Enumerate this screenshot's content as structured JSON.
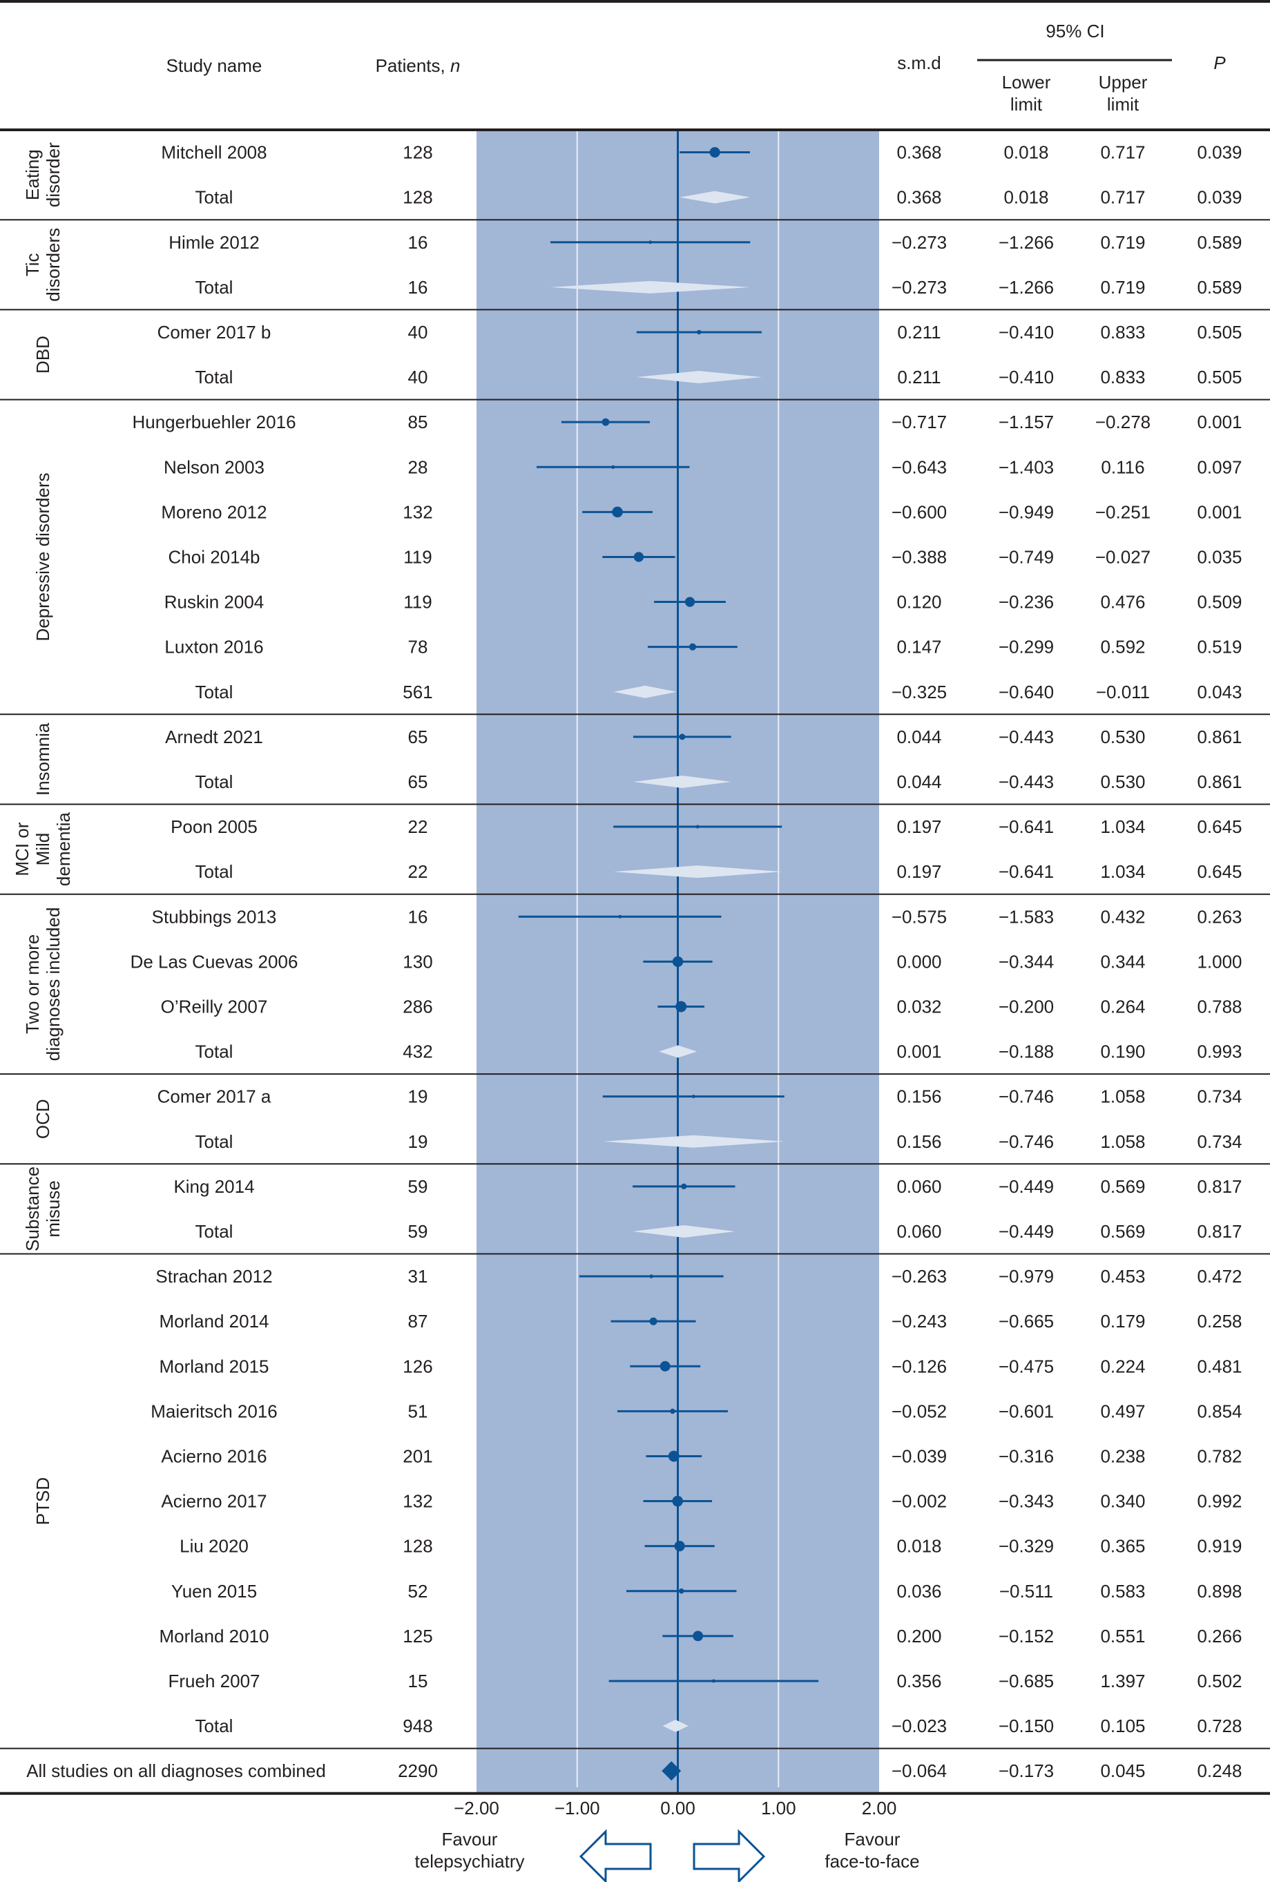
{
  "header": {
    "study_name": "Study name",
    "patients": "Patients, ",
    "patients_n": "n",
    "smd": "s.m.d",
    "ci": "95% CI",
    "lower": [
      "Lower",
      "limit"
    ],
    "upper": [
      "Upper",
      "limit"
    ],
    "p": "P"
  },
  "colors": {
    "plot_bg": "#a2b6d6",
    "marker": "#0b5394",
    "subtotal_diamond": "#dde5f1",
    "gridline": "#e8eef6",
    "rule": "#231f20"
  },
  "chart_data": {
    "type": "forest",
    "title": "",
    "xlabel": "",
    "x_ticks": [
      "−2.00",
      "−1.00",
      "0.00",
      "1.00",
      "2.00"
    ],
    "x_tick_values": [
      -2,
      -1,
      0,
      1,
      2
    ],
    "xlim": [
      -2,
      2
    ],
    "left_label": [
      "Favour",
      "telepsychiatry"
    ],
    "right_label": [
      "Favour",
      "face-to-face"
    ],
    "groups": [
      {
        "label": [
          "Eating",
          "disorder"
        ],
        "rows": [
          {
            "study": "Mitchell 2008",
            "n": "128",
            "smd": 0.368,
            "lower": 0.018,
            "upper": 0.717,
            "p": "0.039",
            "smd_text": "0.368",
            "lower_text": "0.018",
            "upper_text": "0.717"
          },
          {
            "study": "Total",
            "total": true,
            "n": "128",
            "smd": 0.368,
            "lower": 0.018,
            "upper": 0.717,
            "p": "0.039",
            "smd_text": "0.368",
            "lower_text": "0.018",
            "upper_text": "0.717"
          }
        ]
      },
      {
        "label": [
          "Tic",
          "disorders"
        ],
        "rows": [
          {
            "study": "Himle 2012",
            "n": "16",
            "smd": -0.273,
            "lower": -1.266,
            "upper": 0.719,
            "p": "0.589",
            "smd_text": "−0.273",
            "lower_text": "−1.266",
            "upper_text": "0.719"
          },
          {
            "study": "Total",
            "total": true,
            "n": "16",
            "smd": -0.273,
            "lower": -1.266,
            "upper": 0.719,
            "p": "0.589",
            "smd_text": "−0.273",
            "lower_text": "−1.266",
            "upper_text": "0.719"
          }
        ]
      },
      {
        "label": [
          "DBD"
        ],
        "rows": [
          {
            "study": "Comer 2017 b",
            "n": "40",
            "smd": 0.211,
            "lower": -0.41,
            "upper": 0.833,
            "p": "0.505",
            "smd_text": "0.211",
            "lower_text": "−0.410",
            "upper_text": "0.833"
          },
          {
            "study": "Total",
            "total": true,
            "n": "40",
            "smd": 0.211,
            "lower": -0.41,
            "upper": 0.833,
            "p": "0.505",
            "smd_text": "0.211",
            "lower_text": "−0.410",
            "upper_text": "0.833"
          }
        ]
      },
      {
        "label": [
          "Depressive disorders"
        ],
        "rows": [
          {
            "study": "Hungerbuehler 2016",
            "n": "85",
            "smd": -0.717,
            "lower": -1.157,
            "upper": -0.278,
            "p": "0.001",
            "smd_text": "−0.717",
            "lower_text": "−1.157",
            "upper_text": "−0.278"
          },
          {
            "study": "Nelson 2003",
            "n": "28",
            "smd": -0.643,
            "lower": -1.403,
            "upper": 0.116,
            "p": "0.097",
            "smd_text": "−0.643",
            "lower_text": "−1.403",
            "upper_text": "0.116"
          },
          {
            "study": "Moreno 2012",
            "n": "132",
            "smd": -0.6,
            "lower": -0.949,
            "upper": -0.251,
            "p": "0.001",
            "smd_text": "−0.600",
            "lower_text": "−0.949",
            "upper_text": "−0.251"
          },
          {
            "study": "Choi 2014b",
            "n": "119",
            "smd": -0.388,
            "lower": -0.749,
            "upper": -0.027,
            "p": "0.035",
            "smd_text": "−0.388",
            "lower_text": "−0.749",
            "upper_text": "−0.027"
          },
          {
            "study": "Ruskin 2004",
            "n": "119",
            "smd": 0.12,
            "lower": -0.236,
            "upper": 0.476,
            "p": "0.509",
            "smd_text": "0.120",
            "lower_text": "−0.236",
            "upper_text": "0.476"
          },
          {
            "study": "Luxton 2016",
            "n": "78",
            "smd": 0.147,
            "lower": -0.299,
            "upper": 0.592,
            "p": "0.519",
            "smd_text": "0.147",
            "lower_text": "−0.299",
            "upper_text": "0.592"
          },
          {
            "study": "Total",
            "total": true,
            "n": "561",
            "smd": -0.325,
            "lower": -0.64,
            "upper": -0.011,
            "p": "0.043",
            "smd_text": "−0.325",
            "lower_text": "−0.640",
            "upper_text": "−0.011"
          }
        ]
      },
      {
        "label": [
          "Insomnia"
        ],
        "rows": [
          {
            "study": "Arnedt 2021",
            "n": "65",
            "smd": 0.044,
            "lower": -0.443,
            "upper": 0.53,
            "p": "0.861",
            "smd_text": "0.044",
            "lower_text": "−0.443",
            "upper_text": "0.530"
          },
          {
            "study": "Total",
            "total": true,
            "n": "65",
            "smd": 0.044,
            "lower": -0.443,
            "upper": 0.53,
            "p": "0.861",
            "smd_text": "0.044",
            "lower_text": "−0.443",
            "upper_text": "0.530"
          }
        ]
      },
      {
        "label": [
          "MCI or",
          "Mild",
          "dementia"
        ],
        "rows": [
          {
            "study": "Poon 2005",
            "n": "22",
            "smd": 0.197,
            "lower": -0.641,
            "upper": 1.034,
            "p": "0.645",
            "smd_text": "0.197",
            "lower_text": "−0.641",
            "upper_text": "1.034"
          },
          {
            "study": "Total",
            "total": true,
            "n": "22",
            "smd": 0.197,
            "lower": -0.641,
            "upper": 1.034,
            "p": "0.645",
            "smd_text": "0.197",
            "lower_text": "−0.641",
            "upper_text": "1.034"
          }
        ]
      },
      {
        "label": [
          "Two or more",
          "diagnoses included"
        ],
        "rows": [
          {
            "study": "Stubbings 2013",
            "n": "16",
            "smd": -0.575,
            "lower": -1.583,
            "upper": 0.432,
            "p": "0.263",
            "smd_text": "−0.575",
            "lower_text": "−1.583",
            "upper_text": "0.432"
          },
          {
            "study": "De Las Cuevas 2006",
            "n": "130",
            "smd": 0.0,
            "lower": -0.344,
            "upper": 0.344,
            "p": "1.000",
            "smd_text": "0.000",
            "lower_text": "−0.344",
            "upper_text": "0.344"
          },
          {
            "study": "O’Reilly 2007",
            "n": "286",
            "smd": 0.032,
            "lower": -0.2,
            "upper": 0.264,
            "p": "0.788",
            "smd_text": "0.032",
            "lower_text": "−0.200",
            "upper_text": "0.264"
          },
          {
            "study": "Total",
            "total": true,
            "n": "432",
            "smd": 0.001,
            "lower": -0.188,
            "upper": 0.19,
            "p": "0.993",
            "smd_text": "0.001",
            "lower_text": "−0.188",
            "upper_text": "0.190"
          }
        ]
      },
      {
        "label": [
          "OCD"
        ],
        "rows": [
          {
            "study": "Comer 2017 a",
            "n": "19",
            "smd": 0.156,
            "lower": -0.746,
            "upper": 1.058,
            "p": "0.734",
            "smd_text": "0.156",
            "lower_text": "−0.746",
            "upper_text": "1.058"
          },
          {
            "study": "Total",
            "total": true,
            "n": "19",
            "smd": 0.156,
            "lower": -0.746,
            "upper": 1.058,
            "p": "0.734",
            "smd_text": "0.156",
            "lower_text": "−0.746",
            "upper_text": "1.058"
          }
        ]
      },
      {
        "label": [
          "Substance",
          "misuse"
        ],
        "rows": [
          {
            "study": "King 2014",
            "n": "59",
            "smd": 0.06,
            "lower": -0.449,
            "upper": 0.569,
            "p": "0.817",
            "smd_text": "0.060",
            "lower_text": "−0.449",
            "upper_text": "0.569"
          },
          {
            "study": "Total",
            "total": true,
            "n": "59",
            "smd": 0.06,
            "lower": -0.449,
            "upper": 0.569,
            "p": "0.817",
            "smd_text": "0.060",
            "lower_text": "−0.449",
            "upper_text": "0.569"
          }
        ]
      },
      {
        "label": [
          "PTSD"
        ],
        "rows": [
          {
            "study": "Strachan 2012",
            "n": "31",
            "smd": -0.263,
            "lower": -0.979,
            "upper": 0.453,
            "p": "0.472",
            "smd_text": "−0.263",
            "lower_text": "−0.979",
            "upper_text": "0.453"
          },
          {
            "study": "Morland 2014",
            "n": "87",
            "smd": -0.243,
            "lower": -0.665,
            "upper": 0.179,
            "p": "0.258",
            "smd_text": "−0.243",
            "lower_text": "−0.665",
            "upper_text": "0.179"
          },
          {
            "study": "Morland 2015",
            "n": "126",
            "smd": -0.126,
            "lower": -0.475,
            "upper": 0.224,
            "p": "0.481",
            "smd_text": "−0.126",
            "lower_text": "−0.475",
            "upper_text": "0.224"
          },
          {
            "study": "Maieritsch 2016",
            "n": "51",
            "smd": -0.052,
            "lower": -0.601,
            "upper": 0.497,
            "p": "0.854",
            "smd_text": "−0.052",
            "lower_text": "−0.601",
            "upper_text": "0.497"
          },
          {
            "study": "Acierno 2016",
            "n": "201",
            "smd": -0.039,
            "lower": -0.316,
            "upper": 0.238,
            "p": "0.782",
            "smd_text": "−0.039",
            "lower_text": "−0.316",
            "upper_text": "0.238"
          },
          {
            "study": "Acierno 2017",
            "n": "132",
            "smd": -0.002,
            "lower": -0.343,
            "upper": 0.34,
            "p": "0.992",
            "smd_text": "−0.002",
            "lower_text": "−0.343",
            "upper_text": "0.340"
          },
          {
            "study": "Liu 2020",
            "n": "128",
            "smd": 0.018,
            "lower": -0.329,
            "upper": 0.365,
            "p": "0.919",
            "smd_text": "0.018",
            "lower_text": "−0.329",
            "upper_text": "0.365"
          },
          {
            "study": "Yuen 2015",
            "n": "52",
            "smd": 0.036,
            "lower": -0.511,
            "upper": 0.583,
            "p": "0.898",
            "smd_text": "0.036",
            "lower_text": "−0.511",
            "upper_text": "0.583"
          },
          {
            "study": "Morland 2010",
            "n": "125",
            "smd": 0.2,
            "lower": -0.152,
            "upper": 0.551,
            "p": "0.266",
            "smd_text": "0.200",
            "lower_text": "−0.152",
            "upper_text": "0.551"
          },
          {
            "study": "Frueh 2007",
            "n": "15",
            "smd": 0.356,
            "lower": -0.685,
            "upper": 1.397,
            "p": "0.502",
            "smd_text": "0.356",
            "lower_text": "−0.685",
            "upper_text": "1.397"
          },
          {
            "study": "Total",
            "total": true,
            "n": "948",
            "smd": -0.023,
            "lower": -0.15,
            "upper": 0.105,
            "p": "0.728",
            "smd_text": "−0.023",
            "lower_text": "−0.150",
            "upper_text": "0.105"
          }
        ]
      }
    ],
    "overall": {
      "study": "All studies on all diagnoses combined",
      "n": "2290",
      "smd": -0.064,
      "lower": -0.173,
      "upper": 0.045,
      "p": "0.248",
      "smd_text": "−0.064",
      "lower_text": "−0.173",
      "upper_text": "0.045"
    }
  }
}
